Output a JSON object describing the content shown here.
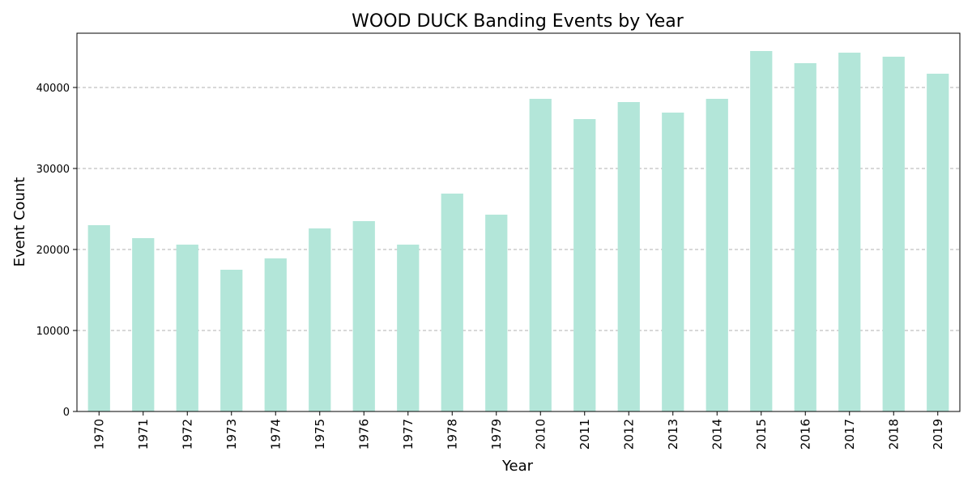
{
  "chart_data": {
    "type": "bar",
    "title": "WOOD DUCK Banding Events by Year",
    "xlabel": "Year",
    "ylabel": "Event Count",
    "ylim": [
      0,
      46700
    ],
    "yticks": [
      0,
      10000,
      20000,
      30000,
      40000
    ],
    "ytick_labels": [
      "0",
      "10000",
      "20000",
      "30000",
      "40000"
    ],
    "grid": "y-dashed",
    "categories": [
      "1970",
      "1971",
      "1972",
      "1973",
      "1974",
      "1975",
      "1976",
      "1977",
      "1978",
      "1979",
      "2010",
      "2011",
      "2012",
      "2013",
      "2014",
      "2015",
      "2016",
      "2017",
      "2018",
      "2019"
    ],
    "series": [
      {
        "name": "Event Count",
        "color": "#b3e6d9",
        "values": [
          23000,
          21400,
          20600,
          17500,
          18900,
          22600,
          23500,
          20600,
          26900,
          24300,
          38600,
          36100,
          38200,
          36900,
          38600,
          44500,
          43000,
          44300,
          43800,
          41700
        ]
      }
    ],
    "colors": {
      "bar": "#b3e6d9",
      "grid": "#b0b0b0",
      "axis": "#000000"
    }
  }
}
